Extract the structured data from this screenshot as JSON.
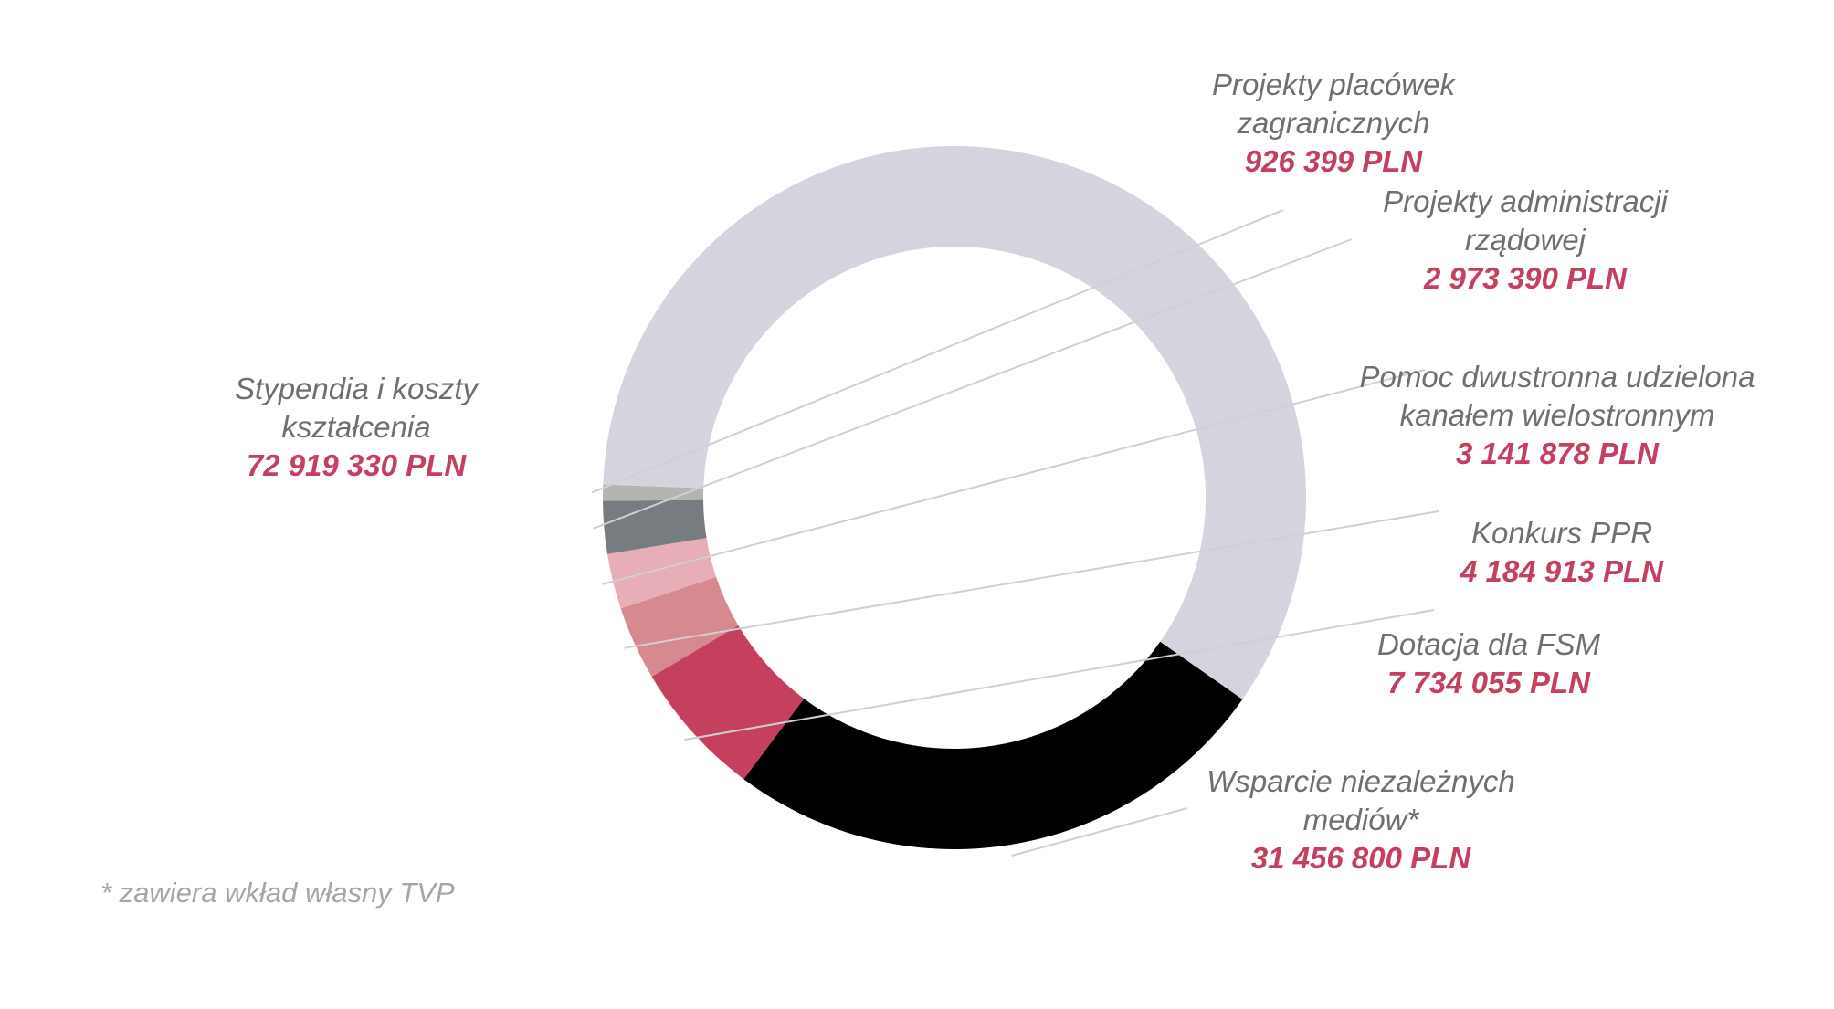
{
  "chart_data": {
    "type": "pie",
    "donut": true,
    "slices": [
      {
        "label": "Wsparcie niezależnych mediów*",
        "value_text": "31 456 800 PLN",
        "value": 31456800,
        "color": "#000000"
      },
      {
        "label": "Dotacja dla FSM",
        "value_text": "7 734 055 PLN",
        "value": 7734055,
        "color": "#c4405e"
      },
      {
        "label": "Konkurs PPR",
        "value_text": "4 184 913 PLN",
        "value": 4184913,
        "color": "#d6898f"
      },
      {
        "label": "Pomoc dwustronna udzielona kanałem wielostronnym",
        "value_text": "3 141 878 PLN",
        "value": 3141878,
        "color": "#e8aeb7"
      },
      {
        "label": "Projekty administracji rządowej",
        "value_text": "2 973 390 PLN",
        "value": 2973390,
        "color": "#777c80"
      },
      {
        "label": "Projekty placówek zagranicznych",
        "value_text": "926 399 PLN",
        "value": 926399,
        "color": "#b4b4b0"
      },
      {
        "label": "Stypendia i koszty kształcenia",
        "value_text": "72 919 330 PLN",
        "value": 72919330,
        "color": "#d4d4df"
      }
    ],
    "leader_color": "#cfcfd4",
    "footnote": "* zawiera wkład własny TVP"
  }
}
